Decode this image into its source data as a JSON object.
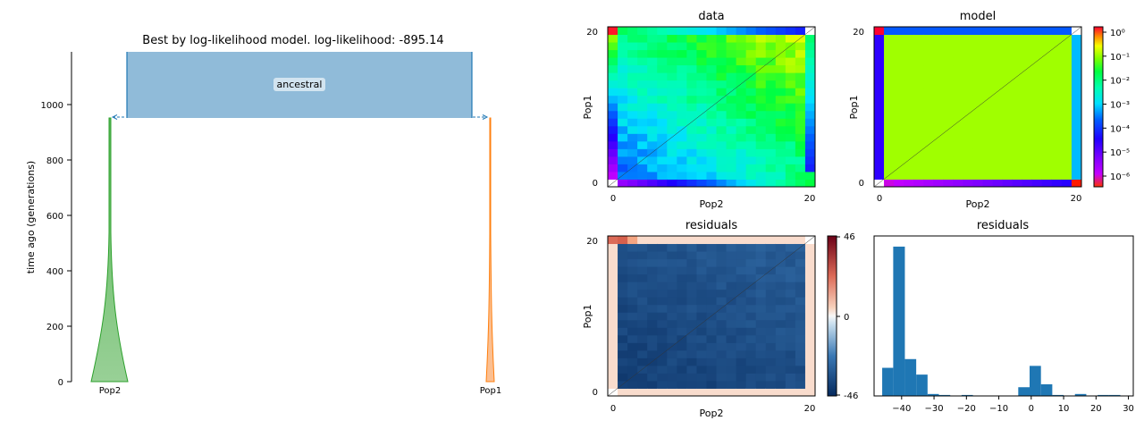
{
  "figure": {
    "demes_title": "Best by log-likelihood model. log-likelihood: -895.14",
    "demes_ylabel": "time ago (generations)",
    "demes_yticks": [
      "0",
      "200",
      "400",
      "600",
      "800",
      "1000"
    ],
    "deme_labels": {
      "ancestral": "ancestral",
      "pop2": "Pop2",
      "pop1": "Pop1"
    },
    "panel_titles": {
      "data": "data",
      "model": "model",
      "residuals_map": "residuals",
      "residuals_hist": "residuals"
    },
    "axis_labels": {
      "pop1": "Pop1",
      "pop2": "Pop2"
    },
    "sfs_ticks": {
      "low": "0",
      "high": "20"
    },
    "colorbar_log_ticks": [
      "10⁰",
      "10⁻¹",
      "10⁻²",
      "10⁻³",
      "10⁻⁴",
      "10⁻⁵",
      "10⁻⁶"
    ],
    "colorbar_res_ticks": [
      "46",
      "0",
      "-46"
    ],
    "hist_xticks": [
      "−40",
      "−30",
      "−20",
      "−10",
      "0",
      "10",
      "20",
      "30"
    ]
  },
  "colors": {
    "ancestral": "#90bbd9",
    "ancestral_edge": "#1f77b4",
    "pop2": "#2ca02c",
    "pop2_fill": "#98d096",
    "pop1": "#ff7f0e",
    "pop1_fill": "#fbbf91",
    "hist_bar": "#1f77b4"
  },
  "chart_data": [
    {
      "type": "demes",
      "title": "Best by log-likelihood model. log-likelihood: -895.14",
      "ylabel": "time ago (generations)",
      "ylim": [
        0,
        1200
      ],
      "demes": [
        {
          "name": "ancestral",
          "start_time": "inf",
          "end_time": 950
        },
        {
          "name": "Pop2",
          "start_time": 950,
          "end_time": 0,
          "growth": "exponential"
        },
        {
          "name": "Pop1",
          "start_time": 950,
          "end_time": 0,
          "growth": "exponential"
        }
      ]
    },
    {
      "type": "heatmap",
      "title": "data",
      "xlabel": "Pop2",
      "ylabel": "Pop1",
      "xlim": [
        0,
        20
      ],
      "ylim": [
        0,
        20
      ],
      "colorscale": "log"
    },
    {
      "type": "heatmap",
      "title": "model",
      "xlabel": "Pop2",
      "ylabel": "Pop1",
      "xlim": [
        0,
        20
      ],
      "ylim": [
        0,
        20
      ],
      "colorscale": "log",
      "colorbar_range": [
        1e-06,
        1
      ]
    },
    {
      "type": "heatmap",
      "title": "residuals",
      "xlabel": "Pop2",
      "ylabel": "Pop1",
      "xlim": [
        0,
        20
      ],
      "ylim": [
        0,
        20
      ],
      "colorbar_range": [
        -46,
        46
      ]
    },
    {
      "type": "bar",
      "title": "residuals",
      "bin_edges": [
        -46,
        -42.6,
        -39,
        -35.5,
        -32,
        -28.5,
        -25,
        -21.5,
        -18,
        -14.5,
        -11,
        -7.5,
        -4,
        -0.5,
        3,
        6.5,
        10,
        13.5,
        17,
        20.5,
        24,
        27.5
      ],
      "counts": [
        29,
        154,
        38,
        22,
        2,
        1,
        0,
        1,
        0,
        0,
        0,
        0,
        9,
        31,
        12,
        1,
        0,
        2,
        0,
        1,
        1
      ],
      "xlim": [
        -48.5,
        31.5
      ],
      "ylim": [
        0,
        165
      ]
    }
  ]
}
